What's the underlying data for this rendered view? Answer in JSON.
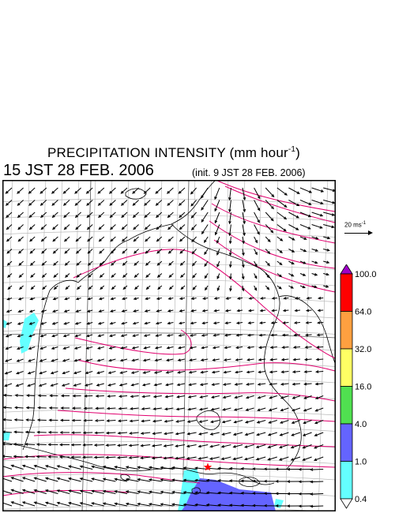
{
  "title": {
    "main": "PRECIPITATION INTENSITY (mm hour",
    "exponent": "-1",
    "close": ")"
  },
  "valid_time": "15 JST 28 FEB. 2006",
  "init_time": "(init. 9 JST 28 FEB. 2006)",
  "vector_scale": {
    "label": "20 ms",
    "exponent": "-1"
  },
  "legend": {
    "levels": [
      "100.0",
      "64.0",
      "32.0",
      "16.0",
      "4.0",
      "1.0",
      "0.4"
    ],
    "colors": [
      "#a000c8",
      "#ff0000",
      "#ffa040",
      "#ffff64",
      "#50e050",
      "#6464ff",
      "#64ffff",
      "#ffffff"
    ]
  },
  "map": {
    "frame_color": "#000000",
    "grid_color": "#bbbbbb",
    "contour_color": "#e0006e",
    "coast_color": "#000000",
    "marker": "red-star",
    "marker_color": "#ff0000"
  }
}
